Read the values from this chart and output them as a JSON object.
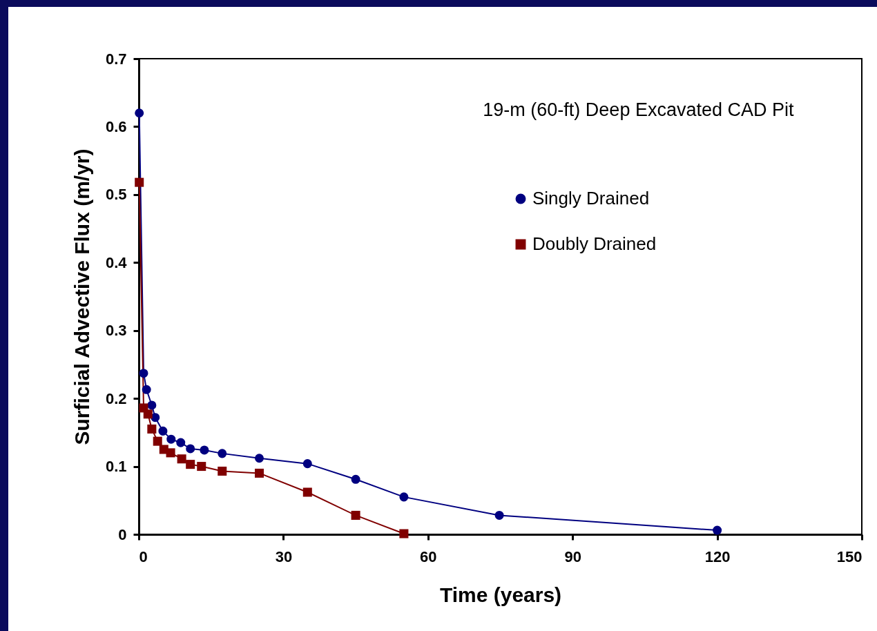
{
  "chart_data": {
    "type": "line",
    "title": "19-m (60-ft) Deep Excavated CAD Pit",
    "xlabel": "Time  (years)",
    "ylabel": "Surficial Advective Flux  (m/yr)",
    "xlim": [
      0,
      150
    ],
    "xticks": [
      0,
      30,
      60,
      90,
      120,
      150
    ],
    "ylim": [
      0,
      0.7
    ],
    "yticks": [
      0,
      0.1,
      0.2,
      0.3,
      0.4,
      0.5,
      0.6,
      0.7
    ],
    "grid": false,
    "legend": "top right",
    "line_style": "solid",
    "series": [
      {
        "name": "Singly Drained",
        "color": "#000080",
        "marker": "circle",
        "x": [
          0.1,
          1,
          1.6,
          2.7,
          3.4,
          5,
          6.7,
          8.7,
          10.7,
          13.6,
          17.3,
          25,
          35,
          45,
          55,
          74.8,
          120
        ],
        "values": [
          0.62,
          0.237,
          0.213,
          0.19,
          0.172,
          0.152,
          0.14,
          0.135,
          0.126,
          0.124,
          0.119,
          0.112,
          0.104,
          0.081,
          0.055,
          0.028,
          0.006
        ]
      },
      {
        "name": "Doubly Drained",
        "color": "#800000",
        "marker": "square",
        "x": [
          0.1,
          1,
          1.9,
          2.7,
          3.9,
          5.2,
          6.6,
          8.9,
          10.7,
          13,
          17.3,
          25,
          35,
          45,
          55
        ],
        "values": [
          0.518,
          0.186,
          0.177,
          0.155,
          0.137,
          0.125,
          0.12,
          0.111,
          0.103,
          0.1,
          0.093,
          0.09,
          0.062,
          0.028,
          0.001
        ]
      }
    ]
  }
}
